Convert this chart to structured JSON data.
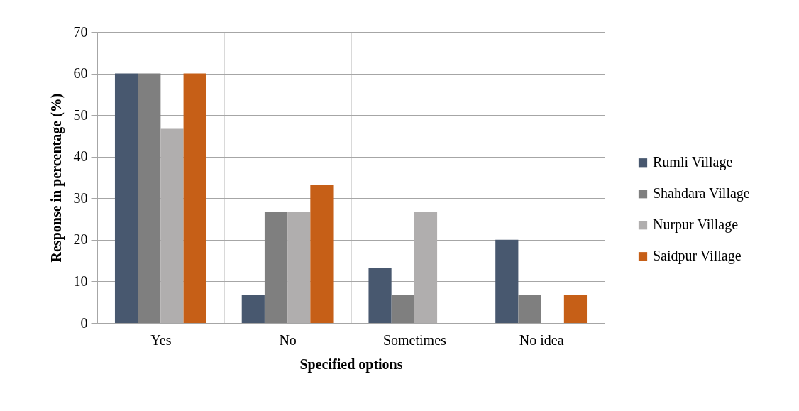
{
  "chart_data": {
    "type": "bar",
    "xlabel": "Specified options",
    "ylabel": "Response in percentage (%)",
    "categories": [
      "Yes",
      "No",
      "Sometimes",
      "No idea"
    ],
    "series": [
      {
        "name": "Rumli Village",
        "color": "#48586f",
        "values": [
          60,
          6.7,
          13.3,
          20
        ]
      },
      {
        "name": "Shahdara Village",
        "color": "#7f7f7f",
        "values": [
          60,
          26.7,
          6.7,
          6.7
        ]
      },
      {
        "name": "Nurpur Village",
        "color": "#b0aeae",
        "values": [
          46.7,
          26.7,
          26.7,
          0
        ]
      },
      {
        "name": "Saidpur Village",
        "color": "#c65f17",
        "values": [
          60,
          33.3,
          0,
          6.7
        ]
      }
    ],
    "ylim": [
      0,
      70
    ],
    "yticks": [
      0,
      10,
      20,
      30,
      40,
      50,
      60,
      70
    ],
    "grid": true,
    "legend": "right"
  }
}
